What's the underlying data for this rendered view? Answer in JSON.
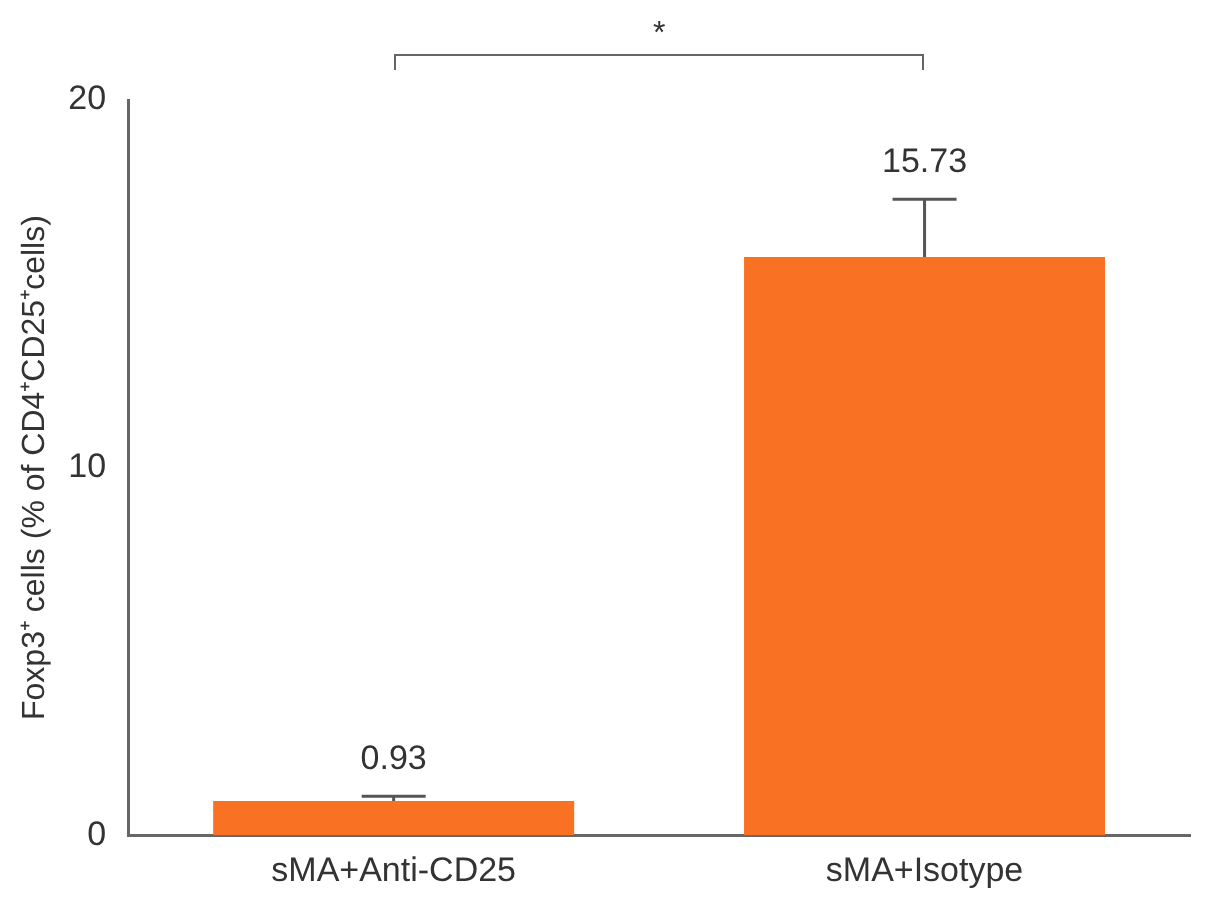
{
  "chart_data": {
    "type": "bar",
    "categories": [
      "sMA+Anti-CD25",
      "sMA+Isotype"
    ],
    "values": [
      0.93,
      15.73
    ],
    "color": "#f97122",
    "errors": [
      [
        0.93,
        1.06
      ],
      [
        15.73,
        17.3
      ]
    ],
    "ylabel": "Foxp3⁺ cells (% of CD4⁺CD25⁺cells)",
    "ylim": [
      0,
      20
    ],
    "yticks": [
      0,
      10,
      20
    ],
    "grid": false,
    "legend": false,
    "data_labels": true,
    "annotations": [
      "*"
    ]
  }
}
